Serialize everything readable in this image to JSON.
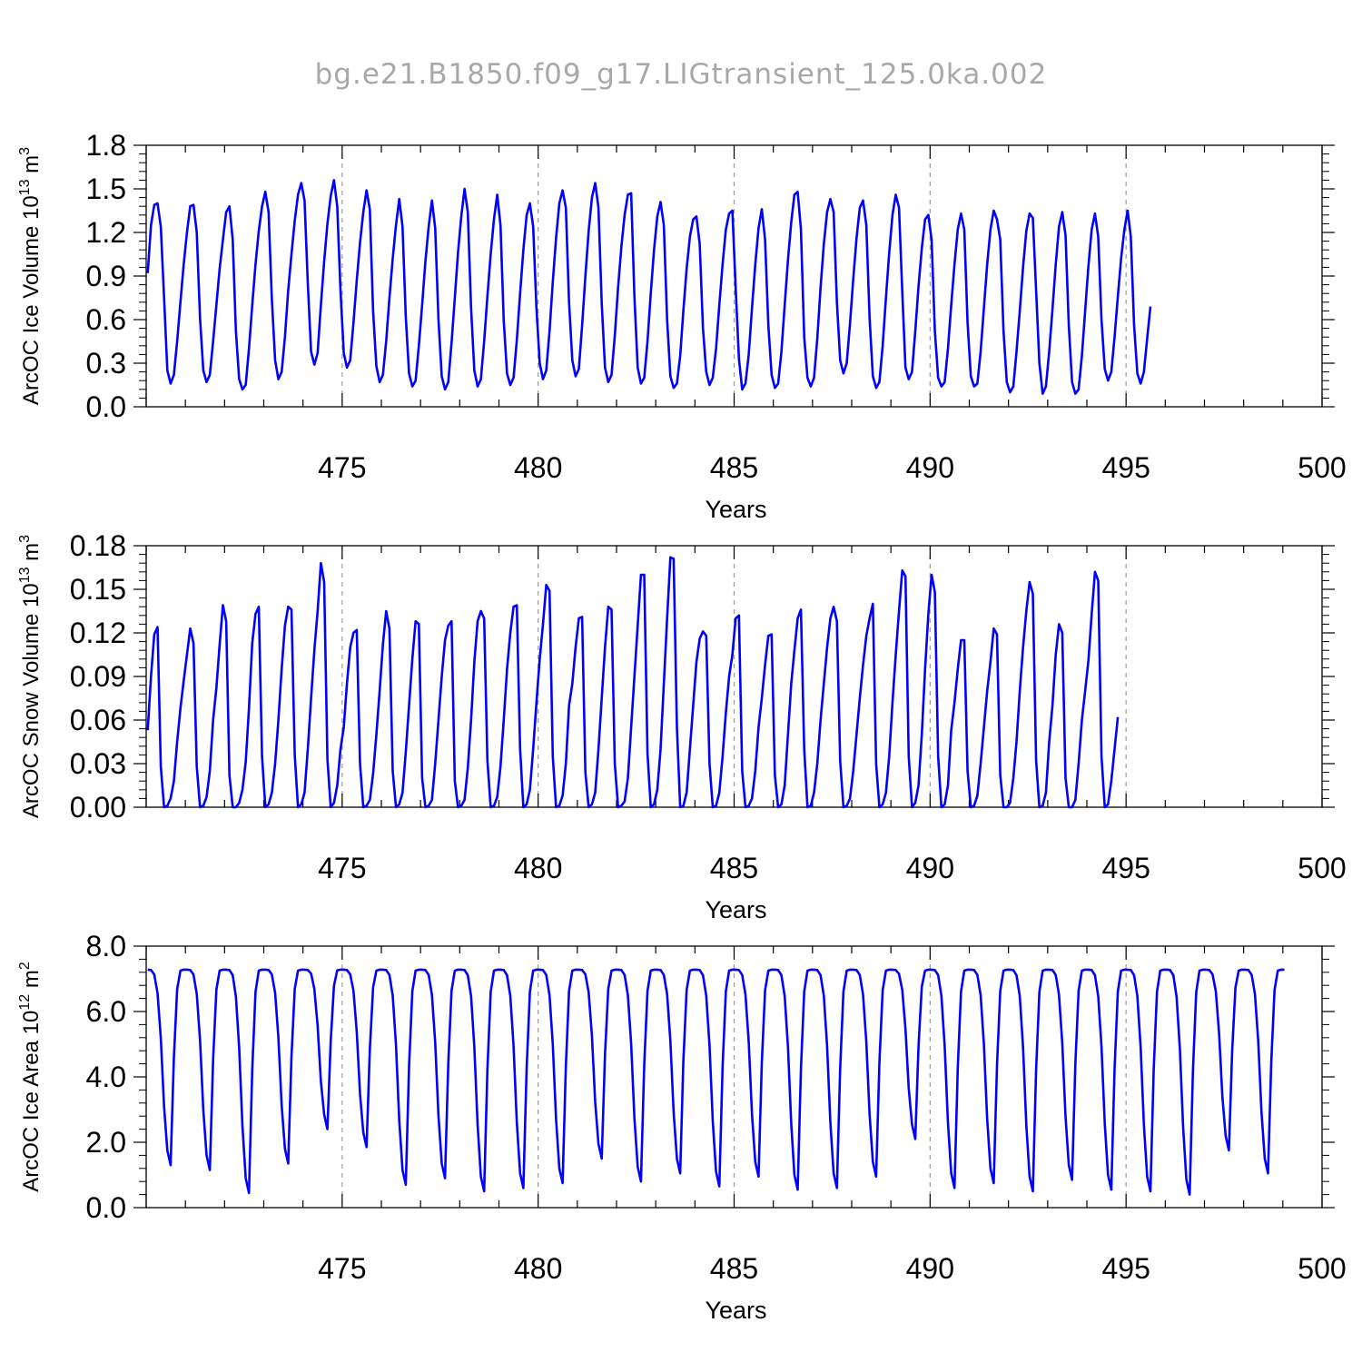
{
  "title": "bg.e21.B1850.f09_g17.LIGtransient_125.0ka.002",
  "colors": {
    "line": "#0000ff",
    "axis": "#000000",
    "title": "#a8a8a8",
    "refline": "#9a9a9a"
  },
  "chart_data": [
    {
      "type": "line",
      "xlabel": "Years",
      "ylabel": "ArcOC Ice Volume 10",
      "yunit_exp": "13",
      "yunit_suffix": " m",
      "yunit_pow": "3",
      "xlim": [
        470,
        500
      ],
      "ylim": [
        0.0,
        1.8
      ],
      "xticks": [
        "475",
        "480",
        "485",
        "490",
        "495",
        "500"
      ],
      "yticks": [
        "0.0",
        "0.3",
        "0.6",
        "0.9",
        "1.2",
        "1.5",
        "1.8"
      ],
      "reference_lines_x": [
        475,
        480,
        485,
        490,
        495
      ],
      "x_start": 470.04,
      "x_step": 0.08333,
      "values": [
        0.92,
        1.25,
        1.39,
        1.4,
        1.24,
        0.75,
        0.25,
        0.16,
        0.22,
        0.45,
        0.72,
        0.98,
        1.2,
        1.38,
        1.39,
        1.2,
        0.61,
        0.25,
        0.17,
        0.22,
        0.45,
        0.7,
        0.95,
        1.15,
        1.34,
        1.38,
        1.15,
        0.52,
        0.19,
        0.12,
        0.15,
        0.4,
        0.7,
        0.98,
        1.21,
        1.38,
        1.48,
        1.34,
        0.74,
        0.32,
        0.19,
        0.24,
        0.48,
        0.8,
        1.05,
        1.28,
        1.46,
        1.54,
        1.42,
        0.85,
        0.38,
        0.29,
        0.37,
        0.7,
        1.0,
        1.26,
        1.45,
        1.56,
        1.38,
        0.8,
        0.37,
        0.27,
        0.32,
        0.58,
        0.87,
        1.13,
        1.34,
        1.49,
        1.36,
        0.66,
        0.28,
        0.17,
        0.22,
        0.45,
        0.75,
        1.02,
        1.25,
        1.43,
        1.24,
        0.62,
        0.23,
        0.14,
        0.18,
        0.42,
        0.7,
        1.0,
        1.24,
        1.42,
        1.23,
        0.6,
        0.21,
        0.12,
        0.17,
        0.44,
        0.75,
        1.06,
        1.31,
        1.5,
        1.34,
        0.68,
        0.25,
        0.14,
        0.19,
        0.45,
        0.76,
        1.05,
        1.29,
        1.46,
        1.25,
        0.59,
        0.23,
        0.15,
        0.2,
        0.46,
        0.78,
        1.08,
        1.32,
        1.4,
        1.24,
        0.68,
        0.3,
        0.19,
        0.25,
        0.52,
        0.86,
        1.16,
        1.4,
        1.49,
        1.37,
        0.72,
        0.32,
        0.21,
        0.26,
        0.56,
        0.9,
        1.21,
        1.44,
        1.54,
        1.37,
        0.71,
        0.27,
        0.17,
        0.22,
        0.49,
        0.82,
        1.1,
        1.32,
        1.46,
        1.47,
        0.76,
        0.27,
        0.16,
        0.2,
        0.45,
        0.78,
        1.08,
        1.31,
        1.41,
        1.25,
        0.6,
        0.21,
        0.13,
        0.16,
        0.35,
        0.66,
        0.95,
        1.17,
        1.29,
        1.31,
        1.12,
        0.54,
        0.24,
        0.15,
        0.2,
        0.4,
        0.7,
        0.98,
        1.22,
        1.33,
        1.35,
        0.82,
        0.33,
        0.12,
        0.16,
        0.36,
        0.68,
        0.98,
        1.23,
        1.36,
        1.15,
        0.56,
        0.22,
        0.13,
        0.16,
        0.38,
        0.7,
        1.01,
        1.27,
        1.46,
        1.48,
        1.22,
        0.48,
        0.2,
        0.14,
        0.2,
        0.47,
        0.82,
        1.12,
        1.34,
        1.43,
        1.34,
        0.72,
        0.32,
        0.23,
        0.3,
        0.57,
        0.88,
        1.16,
        1.37,
        1.42,
        1.25,
        0.61,
        0.21,
        0.13,
        0.17,
        0.42,
        0.75,
        1.06,
        1.32,
        1.46,
        1.37,
        0.79,
        0.27,
        0.19,
        0.24,
        0.52,
        0.83,
        1.09,
        1.29,
        1.32,
        1.15,
        0.52,
        0.2,
        0.14,
        0.17,
        0.4,
        0.7,
        0.98,
        1.22,
        1.33,
        1.22,
        0.58,
        0.21,
        0.14,
        0.16,
        0.38,
        0.68,
        0.98,
        1.22,
        1.35,
        1.29,
        1.15,
        0.52,
        0.17,
        0.1,
        0.14,
        0.38,
        0.66,
        0.96,
        1.21,
        1.33,
        1.3,
        0.8,
        0.3,
        0.09,
        0.14,
        0.38,
        0.67,
        0.98,
        1.24,
        1.34,
        1.18,
        0.56,
        0.17,
        0.09,
        0.12,
        0.35,
        0.66,
        0.97,
        1.22,
        1.33,
        1.17,
        0.6,
        0.26,
        0.18,
        0.24,
        0.48,
        0.76,
        1.02,
        1.22,
        1.35,
        1.17,
        0.56,
        0.23,
        0.16,
        0.24,
        0.47,
        0.69
      ]
    },
    {
      "type": "line",
      "xlabel": "Years",
      "ylabel": "ArcOC Snow Volume 10",
      "yunit_exp": "13",
      "yunit_suffix": " m",
      "yunit_pow": "3",
      "xlim": [
        470,
        500
      ],
      "ylim": [
        0.0,
        0.18
      ],
      "xticks": [
        "475",
        "480",
        "485",
        "490",
        "495",
        "500"
      ],
      "yticks": [
        "0.00",
        "0.03",
        "0.06",
        "0.09",
        "0.12",
        "0.15",
        "0.18"
      ],
      "reference_lines_x": [
        475,
        480,
        485,
        490,
        495
      ],
      "x_start": 470.04,
      "x_step": 0.08333,
      "values": [
        0.053,
        0.09,
        0.119,
        0.124,
        0.028,
        0.0,
        0.001,
        0.006,
        0.018,
        0.045,
        0.068,
        0.087,
        0.105,
        0.123,
        0.113,
        0.028,
        0.0,
        0.001,
        0.007,
        0.025,
        0.06,
        0.082,
        0.112,
        0.139,
        0.128,
        0.022,
        0.0,
        0.0,
        0.003,
        0.012,
        0.031,
        0.068,
        0.113,
        0.133,
        0.138,
        0.035,
        0.0,
        0.002,
        0.01,
        0.03,
        0.06,
        0.095,
        0.125,
        0.138,
        0.136,
        0.036,
        0.0,
        0.002,
        0.01,
        0.04,
        0.075,
        0.108,
        0.135,
        0.168,
        0.155,
        0.033,
        0.0,
        0.003,
        0.015,
        0.04,
        0.055,
        0.085,
        0.11,
        0.12,
        0.122,
        0.03,
        0.0,
        0.001,
        0.005,
        0.023,
        0.05,
        0.08,
        0.112,
        0.135,
        0.123,
        0.025,
        0.0,
        0.002,
        0.01,
        0.038,
        0.07,
        0.102,
        0.128,
        0.126,
        0.02,
        0.0,
        0.001,
        0.005,
        0.03,
        0.06,
        0.09,
        0.115,
        0.125,
        0.128,
        0.018,
        0.0,
        0.001,
        0.005,
        0.027,
        0.06,
        0.1,
        0.128,
        0.135,
        0.13,
        0.032,
        0.0,
        0.001,
        0.007,
        0.028,
        0.06,
        0.095,
        0.12,
        0.138,
        0.139,
        0.04,
        0.0,
        0.002,
        0.012,
        0.04,
        0.072,
        0.102,
        0.126,
        0.153,
        0.149,
        0.035,
        0.0,
        0.001,
        0.008,
        0.03,
        0.07,
        0.085,
        0.11,
        0.13,
        0.131,
        0.024,
        0.0,
        0.002,
        0.01,
        0.04,
        0.075,
        0.11,
        0.138,
        0.136,
        0.03,
        0.0,
        0.001,
        0.004,
        0.02,
        0.055,
        0.09,
        0.125,
        0.16,
        0.16,
        0.037,
        0.0,
        0.002,
        0.012,
        0.04,
        0.085,
        0.13,
        0.172,
        0.171,
        0.055,
        0.0,
        0.001,
        0.01,
        0.04,
        0.07,
        0.1,
        0.116,
        0.121,
        0.118,
        0.03,
        0.0,
        0.001,
        0.01,
        0.035,
        0.065,
        0.09,
        0.105,
        0.13,
        0.132,
        0.025,
        0.0,
        0.001,
        0.006,
        0.025,
        0.055,
        0.075,
        0.098,
        0.118,
        0.119,
        0.022,
        0.0,
        0.002,
        0.015,
        0.05,
        0.085,
        0.108,
        0.13,
        0.136,
        0.04,
        0.0,
        0.001,
        0.01,
        0.03,
        0.06,
        0.085,
        0.11,
        0.13,
        0.138,
        0.128,
        0.032,
        0.0,
        0.001,
        0.006,
        0.025,
        0.05,
        0.075,
        0.098,
        0.118,
        0.13,
        0.14,
        0.03,
        0.0,
        0.002,
        0.01,
        0.035,
        0.072,
        0.105,
        0.135,
        0.163,
        0.159,
        0.035,
        0.0,
        0.003,
        0.015,
        0.05,
        0.095,
        0.133,
        0.16,
        0.148,
        0.035,
        0.0,
        0.002,
        0.015,
        0.053,
        0.072,
        0.095,
        0.115,
        0.115,
        0.025,
        0.0,
        0.001,
        0.008,
        0.03,
        0.055,
        0.08,
        0.1,
        0.123,
        0.119,
        0.022,
        0.0,
        0.0,
        0.003,
        0.02,
        0.045,
        0.08,
        0.11,
        0.135,
        0.155,
        0.147,
        0.032,
        0.0,
        0.001,
        0.01,
        0.045,
        0.07,
        0.105,
        0.126,
        0.12,
        0.02,
        0.0,
        0.0,
        0.005,
        0.03,
        0.06,
        0.08,
        0.101,
        0.133,
        0.162,
        0.156,
        0.035,
        0.0,
        0.002,
        0.018,
        0.04,
        0.062
      ]
    },
    {
      "type": "line",
      "xlabel": "Years",
      "ylabel": "ArcOC Ice Area 10",
      "yunit_exp": "12",
      "yunit_suffix": " m",
      "yunit_pow": "2",
      "xlim": [
        470,
        500
      ],
      "ylim": [
        0.0,
        8.0
      ],
      "xticks": [
        "475",
        "480",
        "485",
        "490",
        "495",
        "500"
      ],
      "yticks": [
        "0.0",
        "2.0",
        "4.0",
        "6.0",
        "8.0"
      ],
      "reference_lines_x": [
        475,
        480,
        485,
        490,
        495
      ],
      "x_start": 470.04,
      "x_step": 0.08333,
      "minima": [
        1.3,
        1.15,
        0.45,
        1.35,
        2.4,
        1.85,
        0.7,
        0.9,
        0.5,
        0.6,
        0.75,
        1.5,
        0.8,
        1.05,
        0.65,
        0.95,
        0.55,
        0.6,
        0.95,
        2.1,
        0.6,
        0.75,
        0.5,
        0.85,
        0.55,
        0.5,
        0.4,
        1.75,
        1.05
      ],
      "peak": 7.28,
      "last_value": 7.28
    }
  ]
}
